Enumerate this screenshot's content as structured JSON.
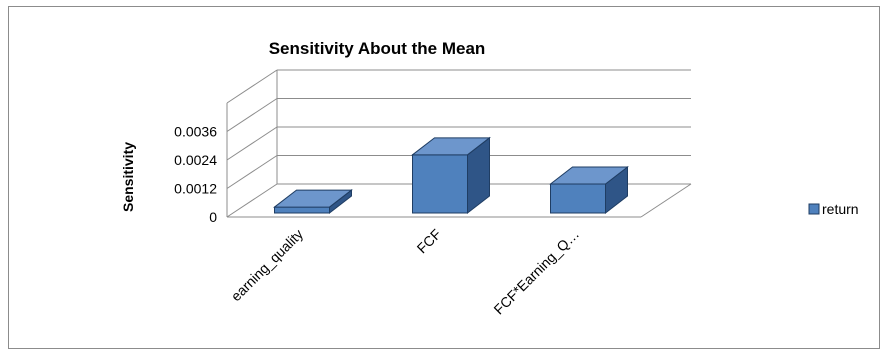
{
  "chart_data": {
    "type": "bar",
    "title": "Sensitivity About the Mean",
    "ylabel": "Sensitivity",
    "xlabel": "",
    "categories": [
      "earning_quality",
      "FCF",
      "FCF*Earning_Q…"
    ],
    "series": [
      {
        "name": "return",
        "values": [
          0.00025,
          0.00245,
          0.00122
        ]
      }
    ],
    "yticks": [
      "0",
      "0.0012",
      "0.0024",
      "0.0036"
    ],
    "ylim": [
      0,
      0.0048
    ],
    "grid": true,
    "legend": "right",
    "three_d": true,
    "colors": {
      "bar_front": "#4f81bd",
      "bar_side": "#2f5587",
      "bar_top": "#6d96cc",
      "grid": "#8c8c8c"
    }
  }
}
